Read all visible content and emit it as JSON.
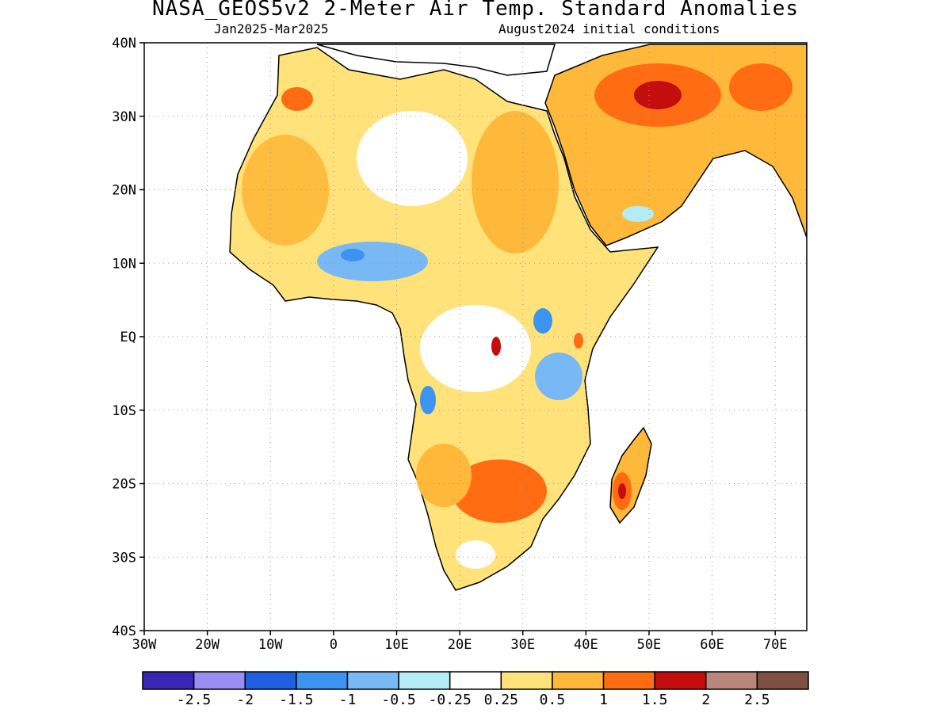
{
  "header": {
    "title": "NASA_GEOS5v2 2-Meter Air Temp. Standard Anomalies",
    "period": "Jan2025-Mar2025",
    "init": "August2024 initial conditions"
  },
  "axes": {
    "lat_labels": [
      "40N",
      "30N",
      "20N",
      "10N",
      "EQ",
      "10S",
      "20S",
      "30S",
      "40S"
    ],
    "lat_values": [
      40,
      30,
      20,
      10,
      0,
      -10,
      -20,
      -30,
      -40
    ],
    "lon_labels": [
      "30W",
      "20W",
      "10W",
      "0",
      "10E",
      "20E",
      "30E",
      "40E",
      "50E",
      "60E",
      "70E"
    ],
    "lon_values": [
      -30,
      -20,
      -10,
      0,
      10,
      20,
      30,
      40,
      50,
      60,
      70
    ],
    "lon_range": [
      -30,
      75
    ],
    "lat_range": [
      -40,
      40
    ],
    "grid": "dotted"
  },
  "colorbar": {
    "colors": [
      "#3a25b4",
      "#9b8cf2",
      "#1f5fe0",
      "#3c93f0",
      "#78b8f5",
      "#b4ecf7",
      "#ffffff",
      "#ffe27a",
      "#ffb93a",
      "#ff6c12",
      "#c40d0d",
      "#b8867a",
      "#7d5042"
    ],
    "labels": [
      "-2.5",
      "-2",
      "-1.5",
      "-1",
      "-0.5",
      "-0.25",
      "0.25",
      "0.5",
      "1",
      "1.5",
      "2",
      "2.5"
    ]
  },
  "map": {
    "land_outline": "#000000",
    "regions": [
      {
        "name": "sahara-west",
        "color": "#ffe27a"
      },
      {
        "name": "west-africa-warm",
        "color": "#ffb93a"
      },
      {
        "name": "sahel-cool",
        "color": "#78b8f5"
      },
      {
        "name": "arabia-hot",
        "color": "#ff6c12"
      },
      {
        "name": "iran-hot",
        "color": "#c40d0d"
      },
      {
        "name": "east-africa-cool",
        "color": "#78b8f5"
      },
      {
        "name": "southern-africa-hot",
        "color": "#ff6c12"
      },
      {
        "name": "madagascar-hot",
        "color": "#ff6c12"
      }
    ]
  }
}
